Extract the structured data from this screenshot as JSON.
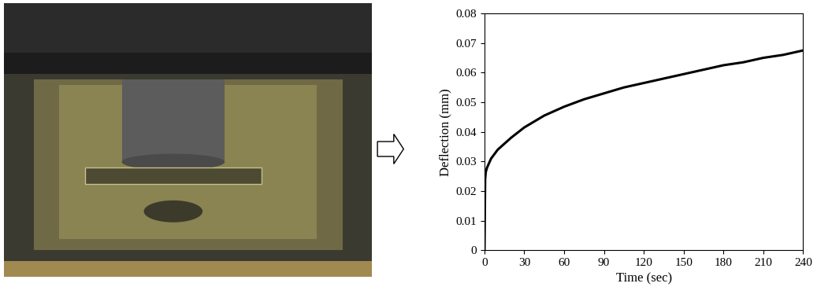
{
  "chart_data": {
    "type": "line",
    "x": [
      0,
      0.5,
      1,
      2,
      5,
      10,
      15,
      20,
      30,
      45,
      60,
      75,
      90,
      105,
      120,
      135,
      150,
      165,
      180,
      195,
      210,
      225,
      240
    ],
    "values": [
      0,
      0.024,
      0.0265,
      0.028,
      0.031,
      0.034,
      0.036,
      0.038,
      0.0415,
      0.0455,
      0.0485,
      0.051,
      0.053,
      0.055,
      0.0565,
      0.058,
      0.0595,
      0.061,
      0.0625,
      0.0635,
      0.065,
      0.066,
      0.0675
    ],
    "color": "#000000",
    "xlabel": "Time (sec)",
    "ylabel": "Deflection (mm)",
    "xlim": [
      0,
      240
    ],
    "ylim": [
      0,
      0.08
    ],
    "xticks": [
      0,
      30,
      60,
      90,
      120,
      150,
      180,
      210,
      240
    ],
    "yticks": [
      0,
      0.01,
      0.02,
      0.03,
      0.04,
      0.05,
      0.06,
      0.07,
      0.08
    ],
    "grid": false
  }
}
